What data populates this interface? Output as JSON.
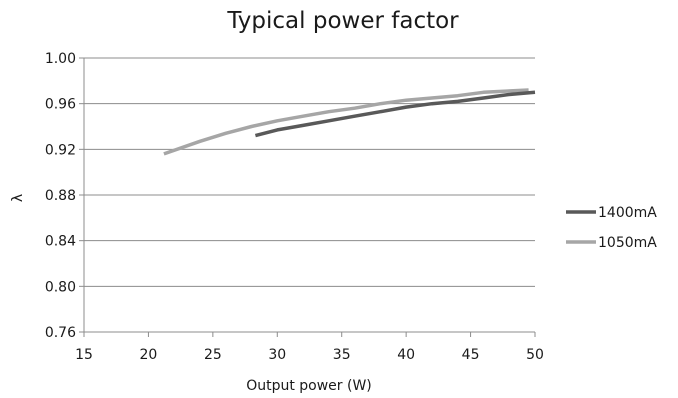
{
  "chart_data": {
    "type": "line",
    "title": "Typical power factor",
    "xlabel": "Output power (W)",
    "ylabel": "λ",
    "xlim": [
      15,
      50
    ],
    "ylim": [
      0.76,
      1.0
    ],
    "x_ticks": [
      "15",
      "20",
      "25",
      "30",
      "35",
      "40",
      "45",
      "50"
    ],
    "y_ticks": [
      "1.00",
      "0.96",
      "0.92",
      "0.88",
      "0.84",
      "0.80",
      "0.76"
    ],
    "grid": true,
    "legend_position": "right",
    "series": [
      {
        "name": "1400mA",
        "color": "#595959",
        "points": [
          [
            28.3,
            0.932
          ],
          [
            30,
            0.937
          ],
          [
            32,
            0.941
          ],
          [
            34,
            0.945
          ],
          [
            36,
            0.949
          ],
          [
            38,
            0.953
          ],
          [
            40,
            0.957
          ],
          [
            42,
            0.96
          ],
          [
            44,
            0.962
          ],
          [
            46,
            0.965
          ],
          [
            48,
            0.968
          ],
          [
            50,
            0.97
          ]
        ]
      },
      {
        "name": "1050mA",
        "color": "#a6a6a6",
        "points": [
          [
            21.2,
            0.916
          ],
          [
            24,
            0.927
          ],
          [
            26,
            0.934
          ],
          [
            28,
            0.94
          ],
          [
            30,
            0.945
          ],
          [
            32,
            0.949
          ],
          [
            34,
            0.953
          ],
          [
            36,
            0.956
          ],
          [
            38,
            0.96
          ],
          [
            40,
            0.963
          ],
          [
            42,
            0.965
          ],
          [
            44,
            0.967
          ],
          [
            46,
            0.97
          ],
          [
            49.5,
            0.972
          ]
        ]
      }
    ]
  }
}
